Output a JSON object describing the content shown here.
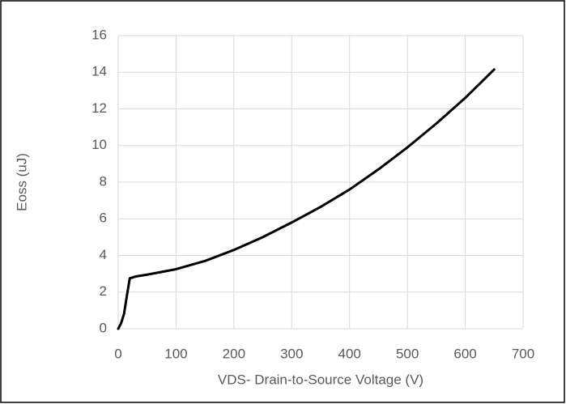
{
  "chart_data": {
    "type": "line",
    "xlabel": "VDS- Drain-to-Source Voltage (V)",
    "ylabel": "Eoss (uJ)",
    "x": [
      0,
      5,
      10,
      15,
      20,
      30,
      50,
      100,
      150,
      200,
      250,
      300,
      350,
      400,
      450,
      500,
      550,
      600,
      650
    ],
    "series": [
      {
        "color": "#000000",
        "values": [
          0,
          0.3,
          0.8,
          1.8,
          2.75,
          2.85,
          2.95,
          3.25,
          3.7,
          4.3,
          5.0,
          5.8,
          6.65,
          7.6,
          8.7,
          9.9,
          11.2,
          12.6,
          14.15
        ]
      }
    ],
    "xlim": [
      0,
      700
    ],
    "xticks": [
      0,
      100,
      200,
      300,
      400,
      500,
      600,
      700
    ],
    "ylim": [
      0,
      16
    ],
    "yticks": [
      0,
      2,
      4,
      6,
      8,
      10,
      12,
      14,
      16
    ],
    "grid": true
  }
}
